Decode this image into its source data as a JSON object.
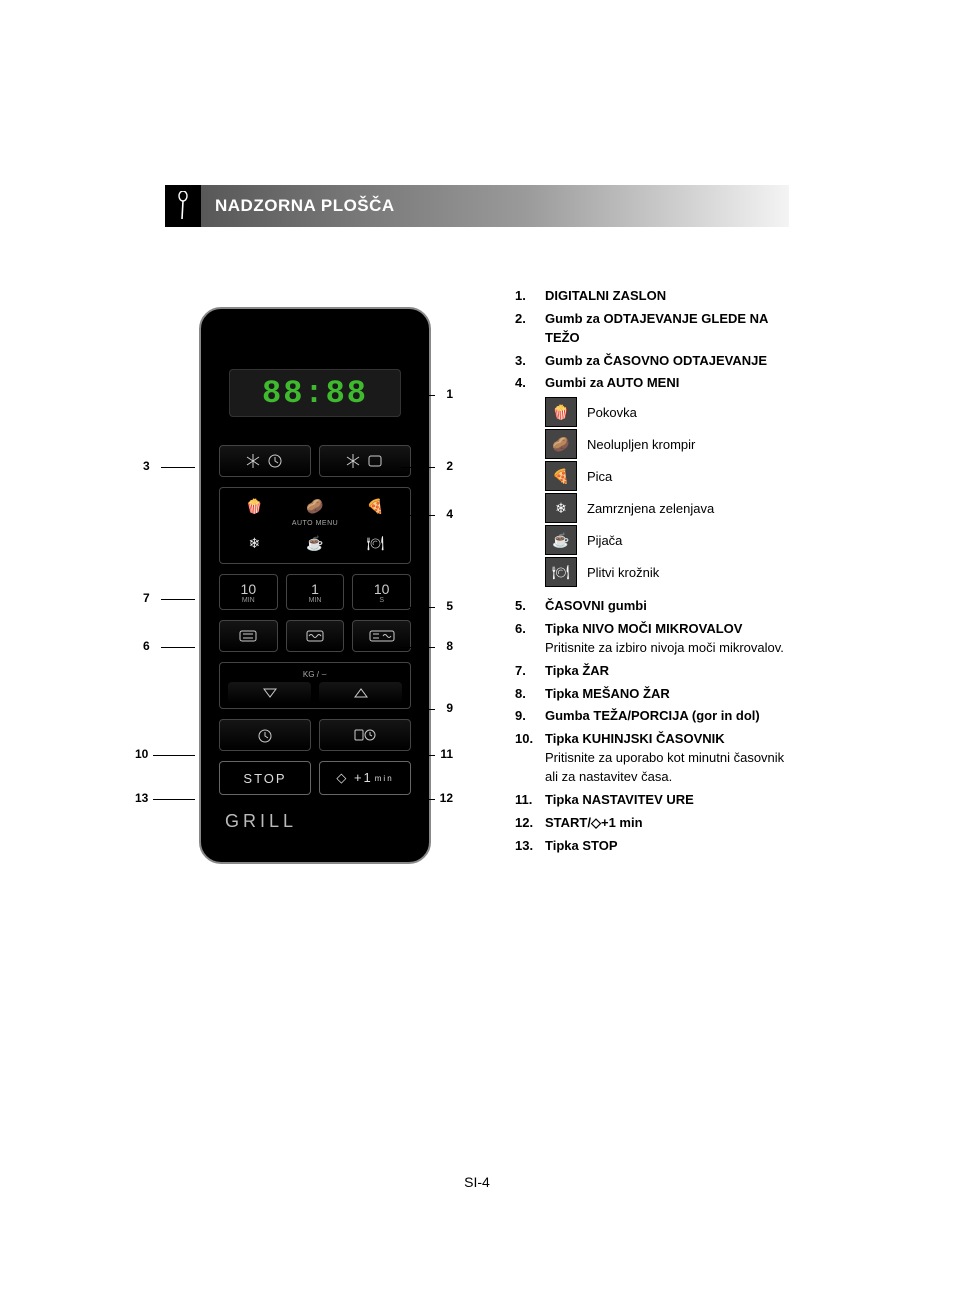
{
  "header": {
    "title": "NADZORNA PLOŠČA"
  },
  "panel": {
    "display_value": "88:88",
    "auto_menu_label": "AUTO MENU",
    "time_buttons": {
      "t10min": {
        "value": "10",
        "unit": "MIN"
      },
      "t1min": {
        "value": "1",
        "unit": "MIN"
      },
      "t10s": {
        "value": "10",
        "unit": "S"
      }
    },
    "kg_label": "KG /",
    "stop_label": "STOP",
    "start_label": "◇ +1",
    "start_unit": "min",
    "grill_label": "GRILL"
  },
  "callouts": {
    "c1": "1",
    "c2": "2",
    "c3": "3",
    "c4": "4",
    "c5": "5",
    "c6": "6",
    "c7": "7",
    "c8": "8",
    "c9": "9",
    "c10": "10",
    "c11": "11",
    "c12": "12",
    "c13": "13"
  },
  "descriptions": [
    {
      "num": "1.",
      "title": "DIGITALNI ZASLON"
    },
    {
      "num": "2.",
      "title": "Gumb za ODTAJEVANJE GLEDE NA TEŽO"
    },
    {
      "num": "3.",
      "title": "Gumb za ČASOVNO ODTAJEVANJE"
    },
    {
      "num": "4.",
      "title": "Gumbi za AUTO MENI"
    }
  ],
  "menu_icons": [
    {
      "name": "popcorn-icon",
      "label": "Pokovka"
    },
    {
      "name": "potato-icon",
      "label": "Neolupljen krompir"
    },
    {
      "name": "pizza-icon",
      "label": "Pica"
    },
    {
      "name": "frozen-veg-icon",
      "label": "Zamrznjena zelenjava"
    },
    {
      "name": "beverage-icon",
      "label": "Pijača"
    },
    {
      "name": "dinner-plate-icon",
      "label": "Plitvi krožnik"
    }
  ],
  "descriptions2": [
    {
      "num": "5.",
      "title": "ČASOVNI gumbi"
    },
    {
      "num": "6.",
      "title": "Tipka NIVO MOČI MIKROVALOV",
      "sub": "Pritisnite za izbiro nivoja moči mikrovalov."
    },
    {
      "num": "7.",
      "title": "Tipka ŽAR"
    },
    {
      "num": "8.",
      "title": "Tipka MEŠANO ŽAR"
    },
    {
      "num": "9.",
      "title": "Gumba TEŽA/PORCIJA (gor in dol)"
    },
    {
      "num": "10.",
      "title": "Tipka KUHINJSKI ČASOVNIK",
      "sub": "Pritisnite za uporabo kot minutni časovnik ali za nastavitev časa."
    },
    {
      "num": "11.",
      "title": "Tipka NASTAVITEV URE"
    },
    {
      "num": "12.",
      "title": "START/◇+1 min"
    },
    {
      "num": "13.",
      "title": "Tipka STOP"
    }
  ],
  "page_number": "SI-4"
}
